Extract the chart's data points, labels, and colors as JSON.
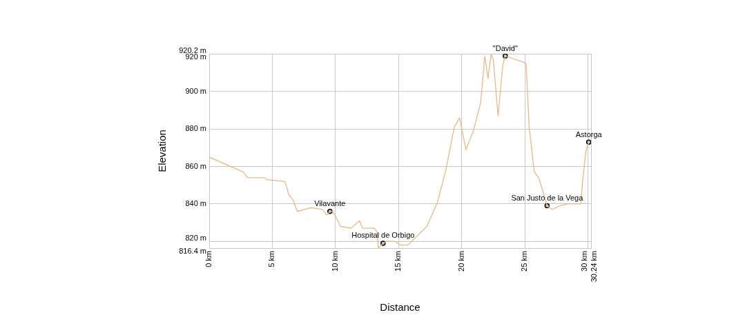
{
  "chart_data": {
    "type": "line",
    "xlabel": "Distance",
    "ylabel": "Elevation",
    "xlim": [
      0,
      30.24
    ],
    "xticks": [
      {
        "value": 0,
        "label": "0 km"
      },
      {
        "value": 5,
        "label": "5 km"
      },
      {
        "value": 10,
        "label": "10 km"
      },
      {
        "value": 15,
        "label": "15 km"
      },
      {
        "value": 20,
        "label": "20 km"
      },
      {
        "value": 25,
        "label": "25 km"
      },
      {
        "value": 30,
        "label": "30 km"
      },
      {
        "value": 30.24,
        "label": "30.24 km"
      }
    ],
    "ylim": [
      816.4,
      920.2
    ],
    "yticks": [
      {
        "value": 816.4,
        "label": "816.4 m"
      },
      {
        "value": 820,
        "label": "820 m"
      },
      {
        "value": 840,
        "label": "840 m"
      },
      {
        "value": 860,
        "label": "860 m"
      },
      {
        "value": 880,
        "label": "880 m"
      },
      {
        "value": 900,
        "label": "900 m"
      },
      {
        "value": 920,
        "label": "920 m"
      },
      {
        "value": 920.2,
        "label": "920.2 m"
      }
    ],
    "grid": true,
    "legend": false,
    "marker": "none",
    "line_style": "solid",
    "series": [
      {
        "color": "#e3b98c",
        "x": [
          0,
          1.7,
          2.7,
          3.05,
          4.4,
          4.55,
          5.97,
          6.1,
          6.3,
          6.65,
          6.98,
          8.06,
          8.98,
          9.31,
          9.56,
          9.81,
          10.4,
          11.23,
          11.9,
          12.15,
          13.07,
          13.3,
          13.4,
          13.77,
          14.07,
          14.7,
          15.16,
          15.74,
          17.24,
          18.08,
          18.23,
          18.74,
          19.41,
          19.83,
          20.33,
          20.92,
          21.5,
          21.83,
          22.08,
          22.33,
          22.5,
          22.88,
          23.25,
          23.45,
          24.75,
          25.1,
          25.34,
          25.75,
          26.1,
          26.59,
          26.76,
          27.17,
          27.75,
          28.4,
          29.43,
          29.6,
          29.83,
          30.06
        ],
        "values": [
          865,
          860,
          857,
          854,
          854,
          853,
          852,
          850,
          845,
          842,
          836,
          838,
          837,
          834,
          836,
          836,
          828,
          827,
          831,
          827,
          827,
          825,
          816.5,
          819,
          820,
          820,
          818,
          818,
          828,
          841,
          845,
          858,
          881,
          886,
          869,
          879,
          894,
          919,
          907,
          920,
          917,
          887,
          914,
          919,
          916,
          915,
          881,
          857,
          854,
          843,
          839,
          837,
          839,
          840,
          840,
          854,
          868,
          873
        ]
      },
      {
        "type": "scatter",
        "marker": "circle",
        "color": "#000000",
        "x": [
          9.56,
          13.77,
          23.45,
          26.76,
          30.06
        ],
        "values": [
          836,
          819,
          919,
          839,
          873
        ]
      }
    ],
    "annotations": [
      {
        "text": "Vilavante",
        "x": 9.56,
        "y": 836
      },
      {
        "text": "Hospital de Orbigo",
        "x": 13.77,
        "y": 819
      },
      {
        "text": "\"David\"",
        "x": 23.45,
        "y": 919
      },
      {
        "text": "San Justo de la Vega",
        "x": 26.76,
        "y": 839
      },
      {
        "text": "Astorga",
        "x": 30.06,
        "y": 873
      }
    ]
  }
}
